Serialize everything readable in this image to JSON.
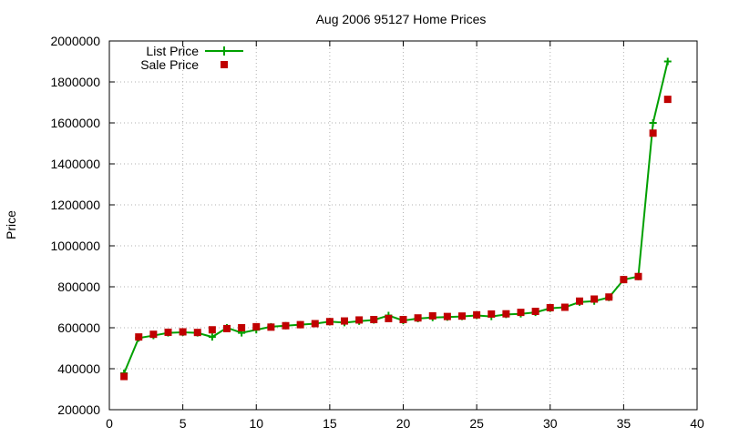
{
  "chart_data": {
    "type": "line",
    "title": "Aug 2006 95127 Home Prices",
    "xlabel": "",
    "ylabel": "Price",
    "xlim": [
      0,
      40
    ],
    "ylim": [
      200000,
      2000000
    ],
    "xticks": [
      "0",
      "5",
      "10",
      "15",
      "20",
      "25",
      "30",
      "35",
      "40"
    ],
    "yticks": [
      "200000",
      "400000",
      "600000",
      "800000",
      "1000000",
      "1200000",
      "1400000",
      "1600000",
      "1800000",
      "2000000"
    ],
    "grid": true,
    "legend": "top-left",
    "colors": {
      "list": "#00a000",
      "sale": "#c00000"
    },
    "x": [
      1,
      2,
      3,
      4,
      5,
      6,
      7,
      8,
      9,
      10,
      11,
      12,
      13,
      14,
      15,
      16,
      17,
      18,
      19,
      20,
      21,
      22,
      23,
      24,
      25,
      26,
      27,
      28,
      29,
      30,
      31,
      32,
      33,
      34,
      35,
      36,
      37,
      38
    ],
    "series": [
      {
        "name": "List Price",
        "style": "linespoints",
        "values": [
          378000,
          550000,
          562000,
          575000,
          578000,
          575000,
          555000,
          600000,
          575000,
          590000,
          605000,
          610000,
          615000,
          620000,
          630000,
          625000,
          632000,
          638000,
          660000,
          635000,
          645000,
          650000,
          652000,
          655000,
          660000,
          655000,
          665000,
          668000,
          675000,
          695000,
          700000,
          725000,
          730000,
          748000,
          835000,
          850000,
          1600000,
          1900000
        ]
      },
      {
        "name": "Sale Price",
        "style": "points",
        "values": [
          362000,
          555000,
          568000,
          578000,
          580000,
          577000,
          590000,
          596000,
          600000,
          605000,
          603000,
          610000,
          615000,
          620000,
          630000,
          633000,
          638000,
          640000,
          645000,
          640000,
          648000,
          658000,
          655000,
          657000,
          663000,
          667000,
          668000,
          675000,
          680000,
          698000,
          700000,
          730000,
          740000,
          750000,
          835000,
          850000,
          1550000,
          1715000
        ]
      }
    ]
  }
}
